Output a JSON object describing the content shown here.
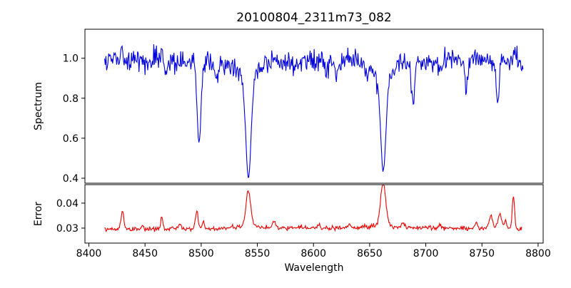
{
  "figure": {
    "title": "20100804_2311m73_082",
    "background": "#ffffff",
    "spine_color": "#000000",
    "text_color": "#000000"
  },
  "chart_data": [
    {
      "type": "line",
      "series_name": "spectrum",
      "title": "20100804_2311m73_082",
      "xlabel": "",
      "ylabel": "Spectrum",
      "xlim": [
        8396.5,
        8804.5
      ],
      "ylim": [
        0.375,
        1.145
      ],
      "xticks": [
        8400,
        8450,
        8500,
        8550,
        8600,
        8650,
        8700,
        8750,
        8800
      ],
      "xtick_labels_visible": false,
      "yticks": [
        0.4,
        0.6,
        0.8,
        1.0
      ],
      "ytick_labels": [
        "0.4",
        "0.6",
        "0.8",
        "1.0"
      ],
      "grid": false,
      "legend": "none",
      "line_color": "#0000dd",
      "line_width": 1.1,
      "x_start": 8414,
      "x_end": 8787,
      "x_step": 0.6,
      "seed": 20100804,
      "continuum_level": 0.99,
      "noise_sigma": 0.028,
      "end_falloff": {
        "center": 8790,
        "depth": 0.09,
        "sigma": 3
      },
      "absorption_lines": [
        {
          "name": "Ca II 8498",
          "center": 8498.0,
          "min_value": 0.59,
          "depth": 0.36,
          "sigma": 1.6,
          "lorentz_depth": 0.05,
          "lorentz_gamma": 4
        },
        {
          "name": "Ca II 8542",
          "center": 8542.1,
          "min_value": 0.41,
          "depth": 0.42,
          "sigma": 2.2,
          "lorentz_depth": 0.17,
          "lorentz_gamma": 6
        },
        {
          "name": "Ca II 8662",
          "center": 8662.1,
          "min_value": 0.43,
          "depth": 0.4,
          "sigma": 2.2,
          "lorentz_depth": 0.16,
          "lorentz_gamma": 6
        },
        {
          "name": "metal line",
          "center": 8468.0,
          "depth": 0.08,
          "sigma": 1.2
        },
        {
          "name": "metal line",
          "center": 8514.0,
          "depth": 0.1,
          "sigma": 1.2
        },
        {
          "name": "metal line",
          "center": 8583.0,
          "depth": 0.06,
          "sigma": 1.2
        },
        {
          "name": "metal line",
          "center": 8611.0,
          "depth": 0.07,
          "sigma": 1.2
        },
        {
          "name": "metal line",
          "center": 8621.0,
          "depth": 0.08,
          "sigma": 1.2
        },
        {
          "name": "metal line",
          "center": 8648.0,
          "depth": 0.07,
          "sigma": 1.2
        },
        {
          "name": "metal line",
          "center": 8688.6,
          "min_value": 0.79,
          "depth": 0.21,
          "sigma": 1.4
        },
        {
          "name": "metal line",
          "center": 8713.0,
          "depth": 0.07,
          "sigma": 1.2
        },
        {
          "name": "metal line",
          "center": 8736.0,
          "depth": 0.12,
          "sigma": 1.3
        },
        {
          "name": "metal line",
          "center": 8764.0,
          "min_value": 0.78,
          "depth": 0.21,
          "sigma": 1.4
        }
      ],
      "emission_spikes": [
        {
          "name": "sky residual",
          "center": 8429.0,
          "peak_value": 1.11,
          "height": 0.1,
          "sigma": 0.8
        },
        {
          "name": "sky residual",
          "center": 8465.0,
          "peak_value": 1.06,
          "height": 0.06,
          "sigma": 0.8
        },
        {
          "name": "sky residual",
          "center": 8493.0,
          "peak_value": 1.05,
          "height": 0.05,
          "sigma": 0.8
        },
        {
          "name": "sky residual",
          "center": 8779.0,
          "peak_value": 1.06,
          "height": 0.06,
          "sigma": 0.8
        }
      ]
    },
    {
      "type": "line",
      "series_name": "error",
      "title": "",
      "xlabel": "Wavelength",
      "ylabel": "Error",
      "xlim": [
        8396.5,
        8804.5
      ],
      "ylim": [
        0.024,
        0.0474
      ],
      "xticks": [
        8400,
        8450,
        8500,
        8550,
        8600,
        8650,
        8700,
        8750,
        8800
      ],
      "xtick_labels_visible": true,
      "yticks": [
        0.03,
        0.04
      ],
      "ytick_labels": [
        "0.03",
        "0.04"
      ],
      "grid": false,
      "legend": "none",
      "line_color": "#ee0000",
      "line_width": 1.1,
      "x_start": 8414,
      "x_end": 8786,
      "x_step": 0.6,
      "seed": 2311073,
      "baseline_level": 0.0293,
      "baseline_bump": {
        "center": 8640,
        "height": 0.0008,
        "sigma": 130
      },
      "noise_sigma": 0.00045,
      "peaks": [
        {
          "center": 8430,
          "peak_value": 0.0365,
          "height": 0.007,
          "sigma": 1.2
        },
        {
          "center": 8448,
          "height": 0.0015,
          "sigma": 1.0
        },
        {
          "center": 8465,
          "peak_value": 0.034,
          "height": 0.0045,
          "sigma": 1.0
        },
        {
          "center": 8481,
          "height": 0.0018,
          "sigma": 1.0
        },
        {
          "center": 8496,
          "peak_value": 0.037,
          "height": 0.0068,
          "sigma": 1.2
        },
        {
          "center": 8502,
          "height": 0.003,
          "sigma": 1.0
        },
        {
          "center": 8542,
          "peak_value": 0.0437,
          "height": 0.0135,
          "sigma": 2.0,
          "lorentz_height": 0.002,
          "lorentz_gamma": 6
        },
        {
          "center": 8565,
          "height": 0.003,
          "sigma": 1.2
        },
        {
          "center": 8605,
          "height": 0.0015,
          "sigma": 1.0
        },
        {
          "center": 8632,
          "height": 0.002,
          "sigma": 1.0
        },
        {
          "center": 8662,
          "peak_value": 0.0465,
          "height": 0.0162,
          "sigma": 2.2,
          "lorentz_height": 0.002,
          "lorentz_gamma": 6
        },
        {
          "center": 8680,
          "height": 0.002,
          "sigma": 1.0
        },
        {
          "center": 8713,
          "height": 0.0015,
          "sigma": 1.0
        },
        {
          "center": 8745,
          "height": 0.0025,
          "sigma": 1.2
        },
        {
          "center": 8758,
          "peak_value": 0.035,
          "height": 0.005,
          "sigma": 1.5
        },
        {
          "center": 8766,
          "peak_value": 0.0375,
          "height": 0.006,
          "sigma": 1.5
        },
        {
          "center": 8771,
          "height": 0.003,
          "sigma": 1.0
        },
        {
          "center": 8778,
          "peak_value": 0.0437,
          "height": 0.0135,
          "sigma": 1.0
        }
      ]
    }
  ]
}
